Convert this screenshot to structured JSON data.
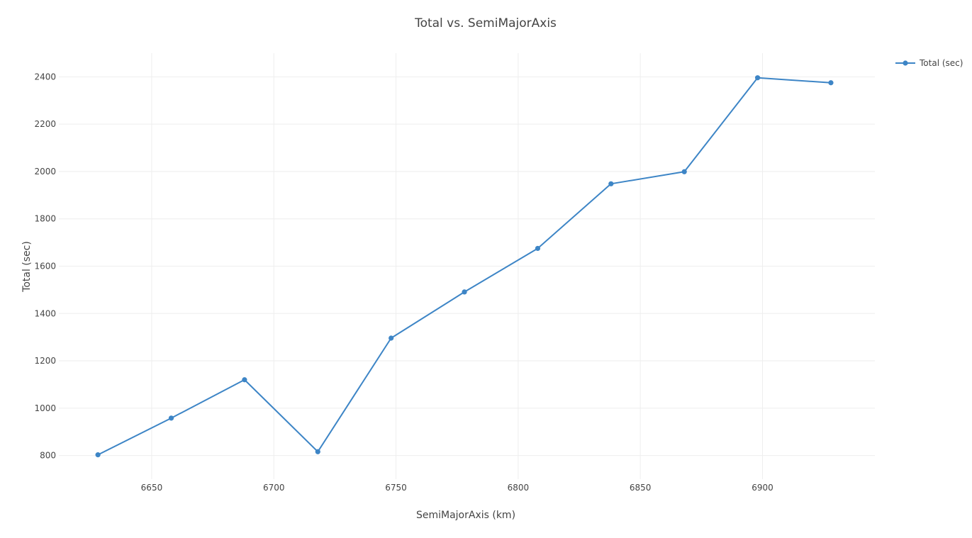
{
  "chart_data": {
    "type": "line",
    "title": "Total vs. SemiMajorAxis",
    "xlabel": "SemiMajorAxis (km)",
    "ylabel": "Total (sec)",
    "xlim": [
      6612,
      6946
    ],
    "ylim": [
      700,
      2500
    ],
    "x_ticks": [
      6650,
      6700,
      6750,
      6800,
      6850,
      6900
    ],
    "y_ticks": [
      800,
      1000,
      1200,
      1400,
      1600,
      1800,
      2000,
      2200,
      2400
    ],
    "grid": true,
    "legend_position": "top-right",
    "series": [
      {
        "name": "Total (sec)",
        "color": "#3d85c6",
        "marker": "circle",
        "x": [
          6628,
          6658,
          6688,
          6718,
          6748,
          6778,
          6808,
          6838,
          6868,
          6898,
          6928
        ],
        "y": [
          803,
          958,
          1120,
          816,
          1296,
          1491,
          1675,
          1948,
          1999,
          2396,
          2375
        ]
      }
    ]
  }
}
